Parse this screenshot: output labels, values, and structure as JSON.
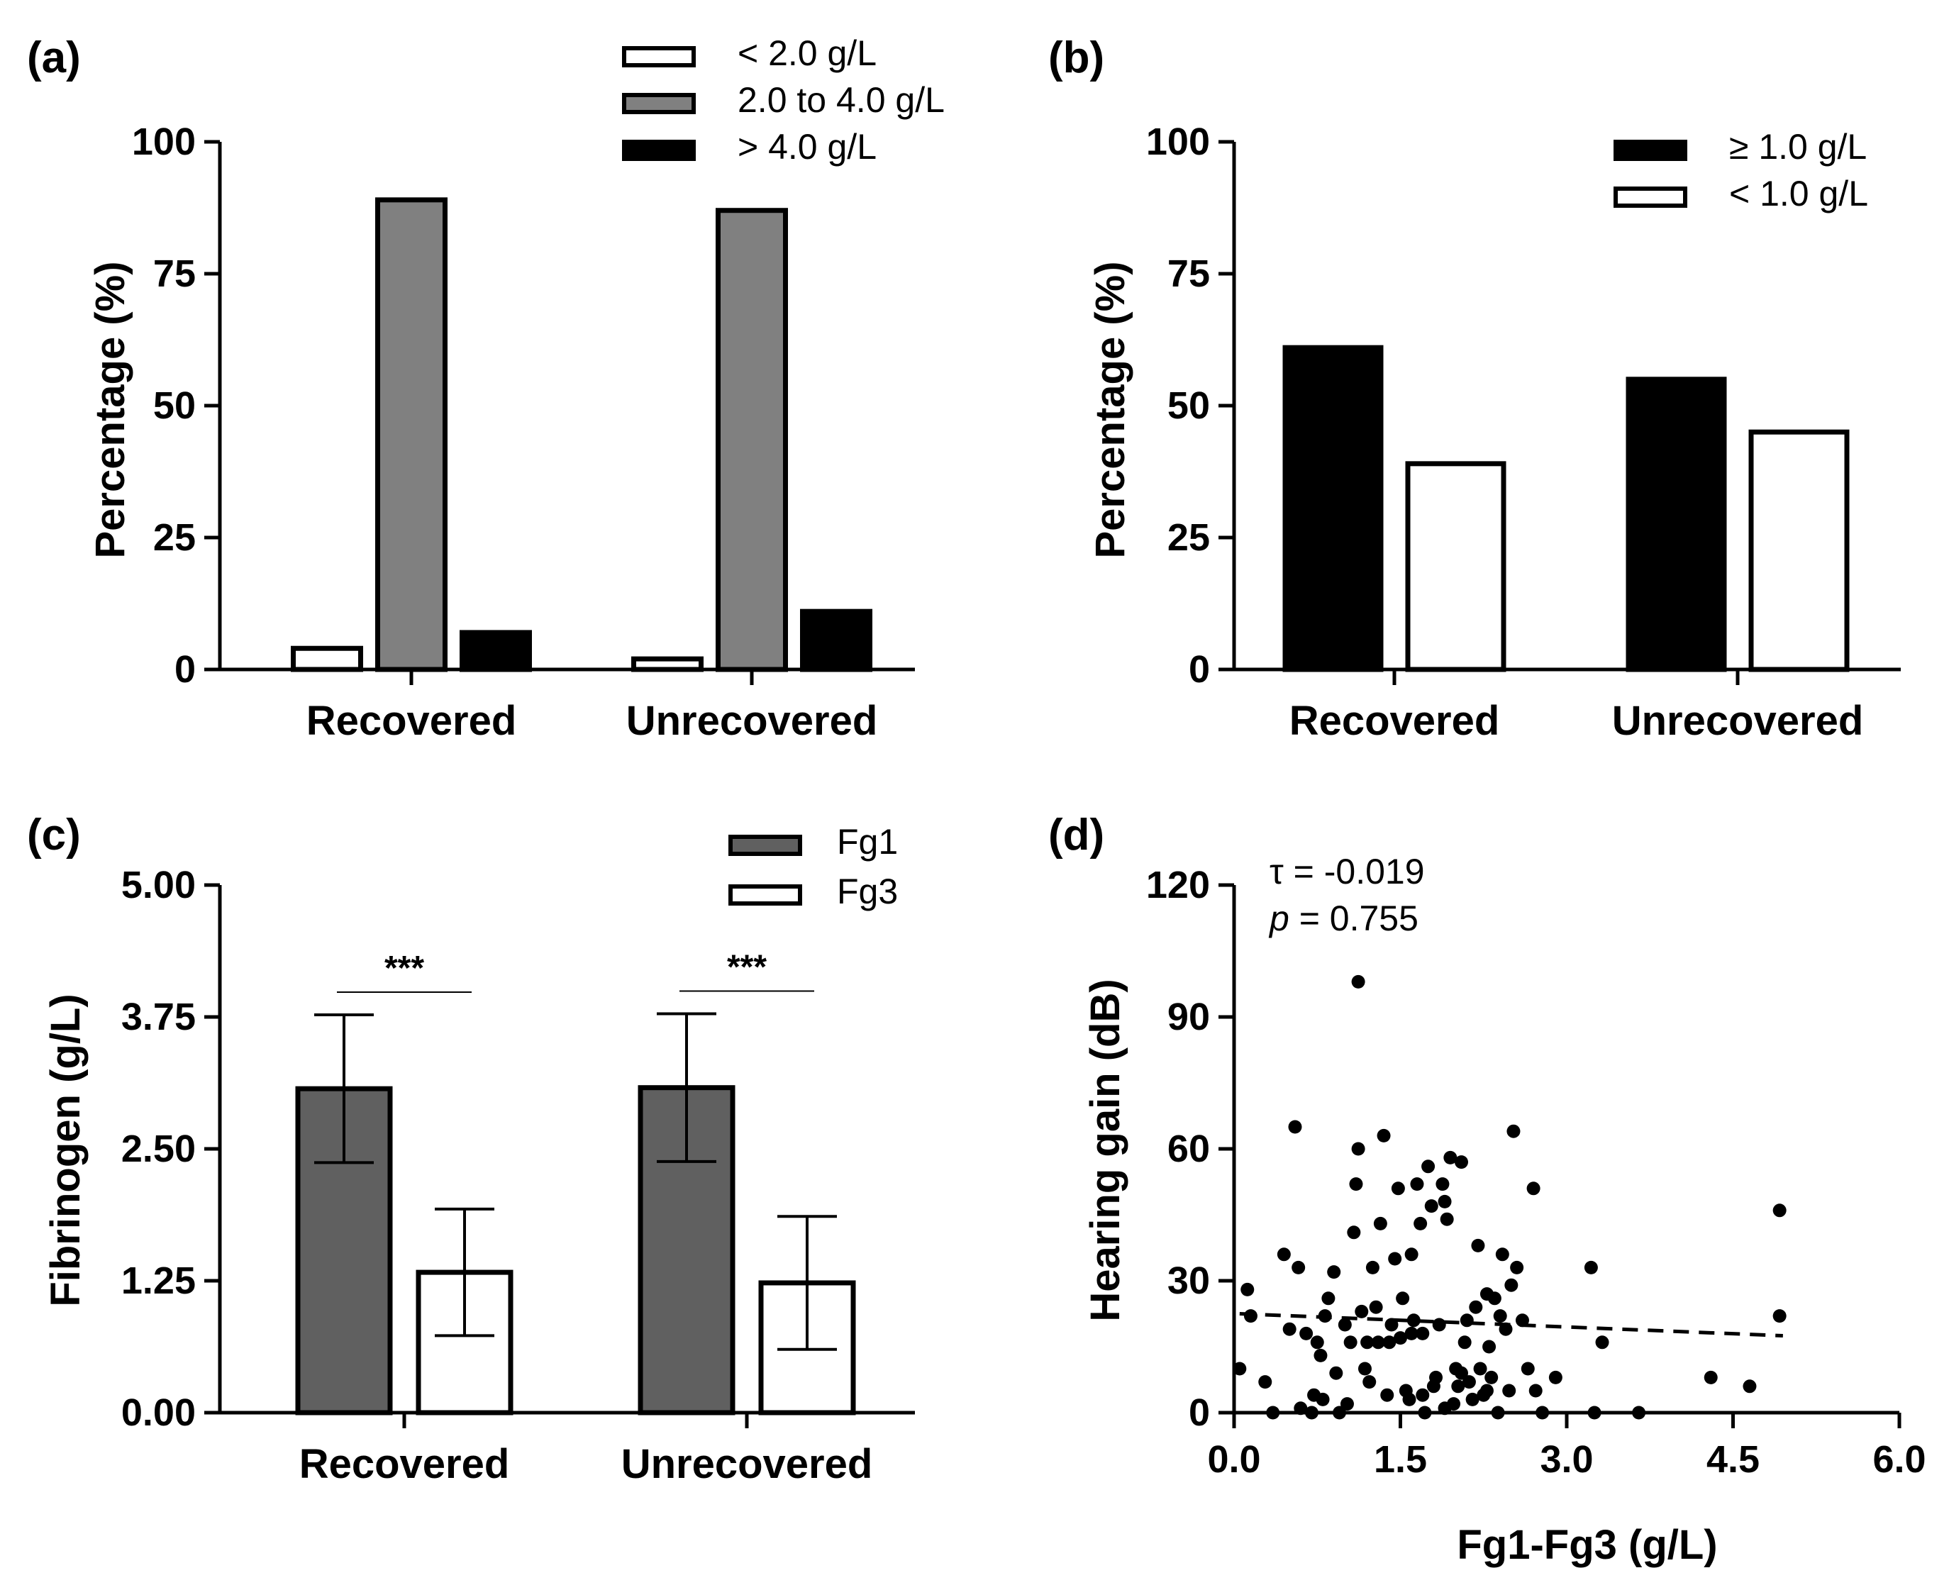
{
  "chart_data": [
    {
      "panel": "(a)",
      "type": "bar",
      "ylabel": "Percentage (%)",
      "ylim": [
        0,
        100
      ],
      "yticks": [
        "0",
        "25",
        "50",
        "75",
        "100"
      ],
      "categories": [
        "Recovered",
        "Unrecovered"
      ],
      "series": [
        {
          "name": "< 2.0 g/L",
          "fill": "#ffffff",
          "values": [
            4,
            2
          ]
        },
        {
          "name": "2.0 to 4.0 g/L",
          "fill": "#808080",
          "values": [
            89,
            87
          ]
        },
        {
          "name": "> 4.0 g/L",
          "fill": "#000000",
          "values": [
            7,
            11
          ]
        }
      ],
      "legend": "top-right"
    },
    {
      "panel": "(b)",
      "type": "bar",
      "ylabel": "Percentage (%)",
      "ylim": [
        0,
        100
      ],
      "yticks": [
        "0",
        "25",
        "50",
        "75",
        "100"
      ],
      "categories": [
        "Recovered",
        "Unrecovered"
      ],
      "series": [
        {
          "name": "≥ 1.0 g/L",
          "fill": "#000000",
          "values": [
            61,
            55
          ]
        },
        {
          "name": "< 1.0 g/L",
          "fill": "#ffffff",
          "values": [
            39,
            45
          ]
        }
      ],
      "legend": "top-right"
    },
    {
      "panel": "(c)",
      "type": "bar",
      "ylabel": "Fibrinogen (g/L)",
      "ylim": [
        0,
        5
      ],
      "yticks": [
        "0.00",
        "1.25",
        "2.50",
        "3.75",
        "5.00"
      ],
      "categories": [
        "Recovered",
        "Unrecovered"
      ],
      "series": [
        {
          "name": "Fg1",
          "fill": "#606060",
          "values": [
            3.07,
            3.08
          ],
          "errors": [
            0.7,
            0.7
          ]
        },
        {
          "name": "Fg3",
          "fill": "#ffffff",
          "values": [
            1.33,
            1.23
          ],
          "errors": [
            0.6,
            0.63
          ]
        }
      ],
      "significance": [
        "***",
        "***"
      ],
      "legend": "top-right"
    },
    {
      "panel": "(d)",
      "type": "scatter",
      "xlabel": "Fg1-Fg3 (g/L)",
      "ylabel": "Hearing gain (dB)",
      "xlim": [
        0,
        6
      ],
      "ylim": [
        0,
        120
      ],
      "xticks": [
        "0.0",
        "1.5",
        "3.0",
        "4.5",
        "6.0"
      ],
      "yticks": [
        "0",
        "30",
        "60",
        "90",
        "120"
      ],
      "annotation_tau": "τ = -0.019",
      "annotation_p_label": "p",
      "annotation_p_value": " = 0.755",
      "trend": {
        "x": [
          0.05,
          4.95
        ],
        "y": [
          22.5,
          17.5
        ]
      },
      "points": [
        [
          0.05,
          10
        ],
        [
          0.12,
          28
        ],
        [
          0.15,
          22
        ],
        [
          0.28,
          7
        ],
        [
          0.35,
          0
        ],
        [
          0.45,
          36
        ],
        [
          0.5,
          19
        ],
        [
          0.55,
          65
        ],
        [
          0.58,
          33
        ],
        [
          0.6,
          1
        ],
        [
          0.65,
          18
        ],
        [
          0.7,
          0
        ],
        [
          0.72,
          4
        ],
        [
          0.75,
          16
        ],
        [
          0.78,
          13
        ],
        [
          0.8,
          3
        ],
        [
          0.82,
          22
        ],
        [
          0.85,
          26
        ],
        [
          0.9,
          32
        ],
        [
          0.92,
          9
        ],
        [
          0.95,
          0
        ],
        [
          1.0,
          20
        ],
        [
          1.02,
          2
        ],
        [
          1.05,
          16
        ],
        [
          1.08,
          41
        ],
        [
          1.1,
          52
        ],
        [
          1.12,
          60
        ],
        [
          1.12,
          98
        ],
        [
          1.15,
          23
        ],
        [
          1.18,
          10
        ],
        [
          1.2,
          16
        ],
        [
          1.22,
          7
        ],
        [
          1.25,
          33
        ],
        [
          1.28,
          24
        ],
        [
          1.3,
          16
        ],
        [
          1.32,
          43
        ],
        [
          1.35,
          63
        ],
        [
          1.38,
          4
        ],
        [
          1.4,
          16
        ],
        [
          1.42,
          20
        ],
        [
          1.45,
          35
        ],
        [
          1.48,
          51
        ],
        [
          1.5,
          17
        ],
        [
          1.52,
          26
        ],
        [
          1.55,
          5
        ],
        [
          1.58,
          3
        ],
        [
          1.6,
          36
        ],
        [
          1.62,
          21
        ],
        [
          1.65,
          52
        ],
        [
          1.68,
          43
        ],
        [
          1.7,
          18
        ],
        [
          1.72,
          0
        ],
        [
          1.75,
          56
        ],
        [
          1.78,
          47
        ],
        [
          1.8,
          6
        ],
        [
          1.82,
          8
        ],
        [
          1.85,
          20
        ],
        [
          1.88,
          52
        ],
        [
          1.9,
          48
        ],
        [
          1.92,
          44
        ],
        [
          1.95,
          58
        ],
        [
          1.98,
          2
        ],
        [
          2.0,
          10
        ],
        [
          2.02,
          6
        ],
        [
          2.05,
          57
        ],
        [
          2.08,
          16
        ],
        [
          2.1,
          21
        ],
        [
          2.12,
          7
        ],
        [
          2.15,
          3
        ],
        [
          2.18,
          24
        ],
        [
          2.2,
          38
        ],
        [
          2.22,
          10
        ],
        [
          2.25,
          4
        ],
        [
          2.28,
          27
        ],
        [
          2.3,
          15
        ],
        [
          2.32,
          8
        ],
        [
          2.35,
          26
        ],
        [
          2.38,
          0
        ],
        [
          2.4,
          22
        ],
        [
          2.42,
          36
        ],
        [
          2.45,
          19
        ],
        [
          2.48,
          5
        ],
        [
          2.5,
          29
        ],
        [
          2.52,
          64
        ],
        [
          2.55,
          33
        ],
        [
          2.6,
          21
        ],
        [
          2.65,
          10
        ],
        [
          2.7,
          51
        ],
        [
          2.72,
          5
        ],
        [
          2.78,
          0
        ],
        [
          2.9,
          8
        ],
        [
          3.22,
          33
        ],
        [
          3.25,
          0
        ],
        [
          3.32,
          16
        ],
        [
          3.65,
          0
        ],
        [
          4.3,
          8
        ],
        [
          4.65,
          6
        ],
        [
          4.92,
          46
        ],
        [
          4.92,
          22
        ],
        [
          2.05,
          9
        ],
        [
          1.9,
          1
        ],
        [
          2.28,
          5
        ],
        [
          1.7,
          4
        ],
        [
          1.6,
          18
        ]
      ]
    }
  ]
}
